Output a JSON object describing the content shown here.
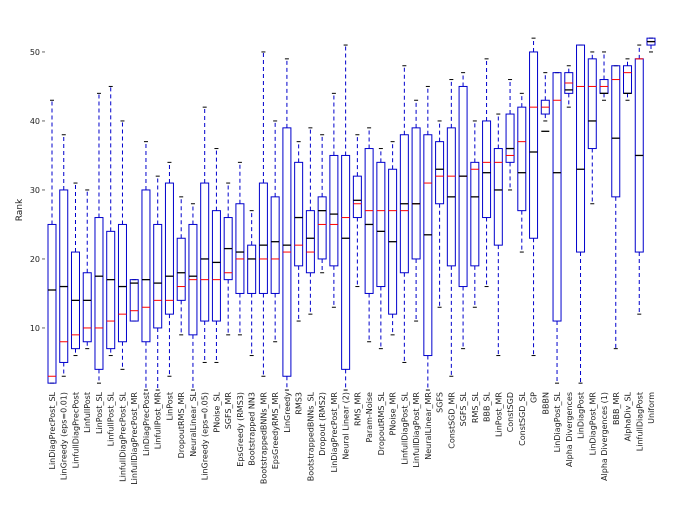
{
  "chart_data": {
    "type": "box",
    "ylabel": "Rank",
    "categories": [
      "LinDiagPrecPost_SL",
      "LinGreedy (eps=0.01)",
      "LinfullDiagPrecPost",
      "LinfullPost",
      "LinPost_SL",
      "LinfullPost_SL",
      "LinfullDiagPrecPost_SL",
      "LinfullDiagPrecPost_MR",
      "LinDiagPrecPost",
      "LinfullPost_MR",
      "LinPost",
      "DropoutRMS_MR",
      "NeuralLinear_SL",
      "LinGreedy (eps=0.05)",
      "PNoise_SL",
      "SGFS_MR",
      "EpsGreedy (RMS3)",
      "Bootstrapped NN3",
      "BootstrappedBNNs_MR",
      "EpsGreedyRMS_MR",
      "LinGreedy",
      "RMS3",
      "BootstrappedBNNs_SL",
      "Dropout (RMS2)",
      "LinDiagPrecPost_MR",
      "Neural Linear (2)",
      "RMS_MR",
      "Param-Noise",
      "DropoutRMS_SL",
      "PNoise_MR",
      "LinfullDiagPost_SL",
      "LinfullDiagPost_MR",
      "NeuralLinear_MR",
      "SGFS",
      "ConstSGD_MR",
      "SGFS_SL",
      "RMS_SL",
      "BBB_SL",
      "LinPost_MR",
      "ConstSGD",
      "ConstSGD_SL",
      "GP",
      "BBBN",
      "LinDiagPost_SL",
      "Alpha Divergences",
      "LinDiagPost",
      "LinDiagPost_MR",
      "Alpha Divergences (1)",
      "BBB_MR",
      "AlphaDiv_SL",
      "LinfullDiagPost",
      "Uniform"
    ],
    "whisker_low": [
      2,
      3,
      6,
      7,
      2,
      6,
      4,
      11,
      1,
      1,
      3,
      9,
      1,
      5,
      5,
      9,
      9,
      6,
      3,
      8,
      1,
      11,
      12,
      18,
      13,
      1,
      16,
      8,
      7,
      9,
      5,
      11,
      1,
      13,
      3,
      7,
      13,
      16,
      6,
      30,
      21,
      6,
      40,
      2,
      42,
      2,
      28,
      43,
      7,
      43,
      12,
      50
    ],
    "q1": [
      2,
      5,
      7,
      8,
      4,
      7,
      8,
      11,
      8,
      10,
      12,
      14,
      9,
      11,
      11,
      17,
      15,
      15,
      15,
      15,
      3,
      19,
      18,
      20,
      19,
      4,
      26,
      15,
      16,
      12,
      18,
      20,
      6,
      28,
      19,
      16,
      19,
      26,
      22,
      34,
      27,
      23,
      41,
      11,
      44,
      21,
      36,
      44,
      29,
      44,
      21,
      51
    ],
    "median": [
      3,
      8,
      9,
      10,
      10,
      11,
      12,
      12.5,
      13,
      14,
      14,
      16,
      17,
      17,
      17,
      18,
      20,
      20,
      20,
      20,
      21,
      22,
      21,
      25,
      25,
      26,
      28,
      27,
      27,
      27,
      27,
      28,
      31,
      32,
      32,
      32,
      33,
      34,
      34,
      35,
      37,
      42,
      42,
      43,
      45.5,
      45,
      45,
      45,
      46,
      47,
      49,
      51.5
    ],
    "mean": [
      15.5,
      16,
      14,
      14,
      17.5,
      17,
      16,
      16.5,
      17,
      16.5,
      17.5,
      18,
      17.5,
      20,
      19.5,
      21.5,
      21,
      20,
      22,
      22.5,
      22,
      26,
      23,
      27,
      26.5,
      23,
      28.5,
      25,
      24,
      22.5,
      28,
      28,
      23.5,
      33,
      29,
      32,
      29,
      32.5,
      30,
      36,
      32.5,
      35.5,
      38.5,
      32.5,
      44.5,
      33,
      40,
      44,
      37.5,
      44,
      35,
      51.5
    ],
    "q3": [
      25,
      30,
      21,
      18,
      26,
      24,
      25,
      17,
      30,
      25,
      31,
      23,
      25,
      31,
      27,
      26,
      28,
      22,
      31,
      29,
      39,
      34,
      27,
      29,
      35,
      35,
      32,
      36,
      34,
      33,
      38,
      39,
      38,
      37,
      39,
      45,
      34,
      40,
      36,
      41,
      42,
      50,
      43,
      47,
      47,
      51,
      49,
      46,
      48,
      48,
      49,
      52
    ],
    "whisker_high": [
      43,
      38,
      31,
      30,
      44,
      45,
      40,
      17,
      37,
      32,
      34,
      29,
      28,
      42,
      36,
      31,
      34,
      27,
      50,
      40,
      49,
      37,
      39,
      38,
      44,
      51,
      38,
      39,
      36,
      37,
      48,
      43,
      45,
      40,
      46,
      47,
      40,
      49,
      41,
      46,
      44,
      52,
      47,
      47,
      48,
      51,
      50,
      50,
      48,
      49,
      51,
      52
    ],
    "ylim": [
      1.5,
      52.5
    ],
    "yticks": [
      10,
      20,
      30,
      40,
      50
    ],
    "box_color": "#0000cc",
    "median_color": "#ff0000",
    "mean_color": "#000000"
  }
}
